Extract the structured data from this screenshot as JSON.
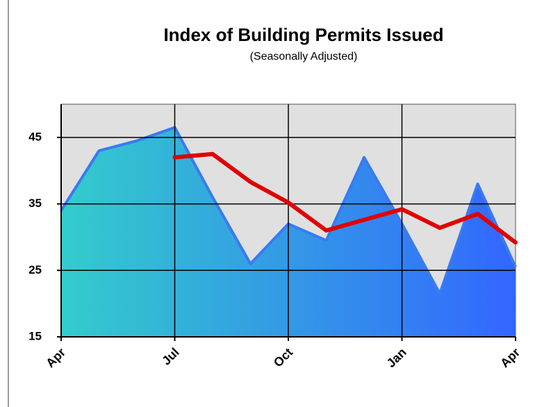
{
  "chart_data": {
    "type": "area",
    "title": "Index of Building Permits Issued",
    "subtitle": "(Seasonally Adjusted)",
    "categories": [
      "Apr",
      null,
      null,
      "Jul",
      null,
      null,
      "Oct",
      null,
      null,
      "Jan",
      null,
      null,
      "Apr"
    ],
    "series": [
      {
        "type": "area",
        "color": "#3a7af0",
        "gradient": [
          "#33cccc",
          "#3366ff"
        ],
        "values": [
          34,
          43,
          44.5,
          46.5,
          36,
          26,
          32,
          29.5,
          42,
          32,
          21.5,
          38,
          25.5
        ]
      },
      {
        "type": "line",
        "color": "#e00000",
        "values": [
          null,
          null,
          null,
          42,
          42.5,
          38.3,
          35.2,
          31,
          32.6,
          34.2,
          31.4,
          33.5,
          29.2
        ]
      }
    ],
    "ylim": [
      15,
      50
    ],
    "yticks": [
      15,
      25,
      35,
      45
    ],
    "grid": true,
    "background": "#e0e0e0"
  }
}
